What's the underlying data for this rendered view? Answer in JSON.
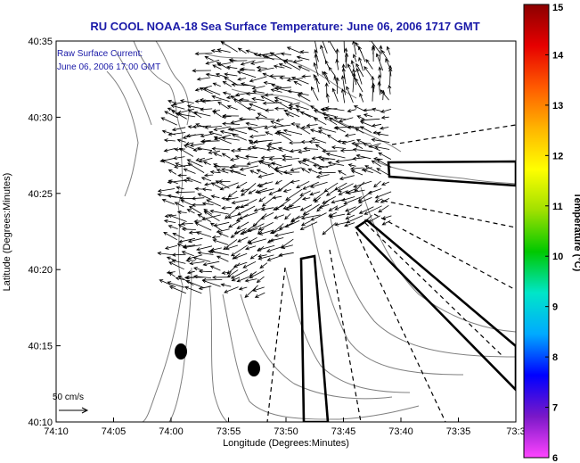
{
  "title": "RU COOL  NOAA-18  Sea Surface Temperature:  June 06, 2006 1717 GMT",
  "annotation": {
    "line1": "Raw Surface Current:",
    "line2": "June 06, 2006 17:00 GMT"
  },
  "scale_label": "50 cm/s",
  "x_axis": {
    "label": "Longitude (Degrees:Minutes)",
    "ticks": [
      "74:10",
      "74:05",
      "74:00",
      "73:55",
      "73:50",
      "73:45",
      "73:40",
      "73:35",
      "73:3"
    ]
  },
  "y_axis": {
    "label": "Latitude (Degrees:Minutes)",
    "ticks": [
      "40:10",
      "40:15",
      "40:20",
      "40:25",
      "40:30",
      "40:35"
    ]
  },
  "colorbar": {
    "label": "Temperature (°C)",
    "ticks": [
      "6",
      "7",
      "8",
      "9",
      "10",
      "11",
      "12",
      "13",
      "14",
      "15"
    ],
    "colors": [
      "#ff44ff",
      "#7a18c8",
      "#0000ff",
      "#00aaff",
      "#00e6c8",
      "#00c800",
      "#a0e000",
      "#ffff00",
      "#ffb400",
      "#ff5a00",
      "#e60000",
      "#8b0000"
    ]
  },
  "colors": {
    "title": "#1a1aa8",
    "annotation": "#1a1aa8",
    "land_outline": "#808080",
    "vectors": "#000000",
    "frame": "#000000"
  }
}
